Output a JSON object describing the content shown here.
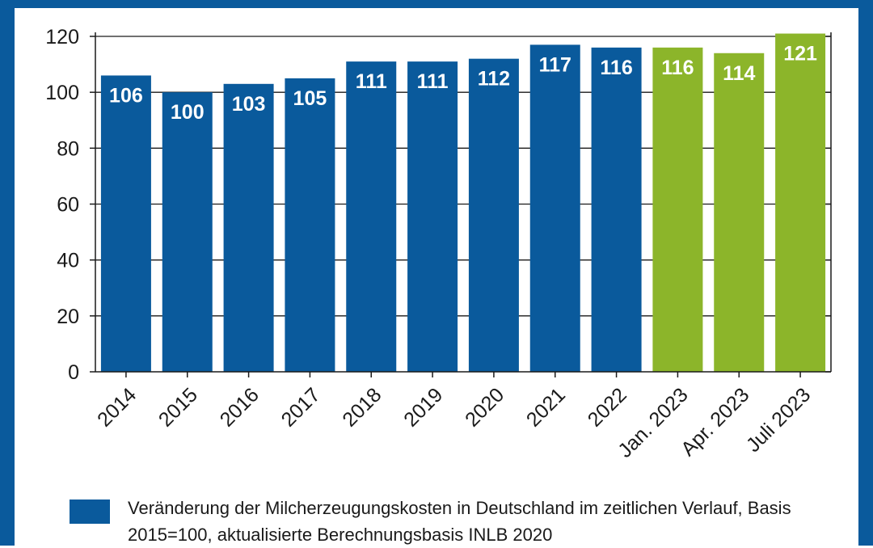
{
  "colors": {
    "frame": "#0a5a9c",
    "series_blue": "#0a5a9c",
    "series_green": "#8cb52a",
    "axis": "#1a1a1a"
  },
  "legend": {
    "text": "Veränderung der Milcherzeugungskosten in Deutschland im zeitlichen Verlauf, Basis 2015=100, aktualisierte Berechnungsbasis INLB 2020"
  },
  "chart_data": {
    "type": "bar",
    "categories": [
      "2014",
      "2015",
      "2016",
      "2017",
      "2018",
      "2019",
      "2020",
      "2021",
      "2022",
      "Jan. 2023",
      "Apr. 2023",
      "Juli 2023"
    ],
    "values": [
      106,
      100,
      103,
      105,
      111,
      111,
      112,
      117,
      116,
      116,
      114,
      121
    ],
    "value_labels": [
      "106",
      "100",
      "103",
      "105",
      "111",
      "111",
      "112",
      "117",
      "116",
      "116",
      "114",
      "121"
    ],
    "bar_colors": [
      "#0a5a9c",
      "#0a5a9c",
      "#0a5a9c",
      "#0a5a9c",
      "#0a5a9c",
      "#0a5a9c",
      "#0a5a9c",
      "#0a5a9c",
      "#0a5a9c",
      "#8cb52a",
      "#8cb52a",
      "#8cb52a"
    ],
    "yticks": [
      "0",
      "20",
      "40",
      "60",
      "80",
      "100",
      "120"
    ],
    "ylim": [
      0,
      120
    ],
    "grid": true,
    "legend_position": "bottom-left",
    "title": "",
    "xlabel": "",
    "ylabel": ""
  }
}
